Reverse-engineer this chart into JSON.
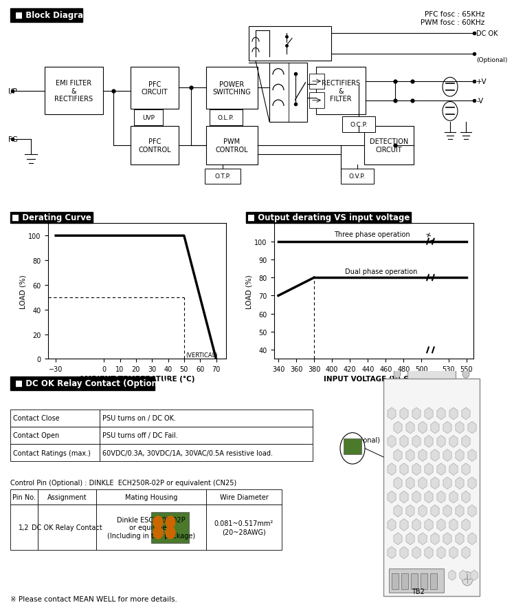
{
  "pfc_fosc": "PFC fosc : 65KHz",
  "pwm_fosc": "PWM fosc : 60KHz",
  "derating_curve_x": [
    -30,
    50,
    60,
    70
  ],
  "derating_curve_y": [
    100,
    100,
    50,
    0
  ],
  "derating_xticks": [
    -30,
    0,
    10,
    20,
    30,
    40,
    50,
    60,
    70
  ],
  "derating_yticks": [
    0,
    20,
    40,
    60,
    80,
    100
  ],
  "derating_xlabel": "AMBIENT TEMPERATURE (°C)",
  "derating_ylabel": "LOAD (%)",
  "derating_vertical_label": "(VERTICAL)",
  "output_xlabel": "INPUT VOLTAGE (V) 60Hz",
  "output_ylabel": "LOAD (%)",
  "output_xticks": [
    340,
    360,
    380,
    400,
    420,
    440,
    460,
    480,
    500,
    530,
    550
  ],
  "output_yticks": [
    40,
    50,
    60,
    70,
    80,
    90,
    100
  ],
  "relay_table_data": [
    [
      "Contact Close",
      "PSU turns on / DC OK."
    ],
    [
      "Contact Open",
      "PSU turns off / DC Fail."
    ],
    [
      "Contact Ratings (max.)",
      "60VDC/0.3A, 30VDC/1A, 30VAC/0.5A resistive load."
    ]
  ],
  "pin_header": [
    "Pin No.",
    "Assignment",
    "Mating Housing",
    "Wire Diameter"
  ],
  "pin_row": [
    "1,2",
    "DC OK Relay Contact",
    "Dinkle ESC250V-02P\nor equivalent\n(Including in the package)",
    "0.081~0.517mm²\n(20~28AWG)"
  ],
  "control_pin_label": "Control Pin (Optional) : DINKLE  ECH250R-02P or equivalent (CN25)",
  "footnote": "※ Please contact MEAN WELL for more details.",
  "bg_color": "#ffffff"
}
